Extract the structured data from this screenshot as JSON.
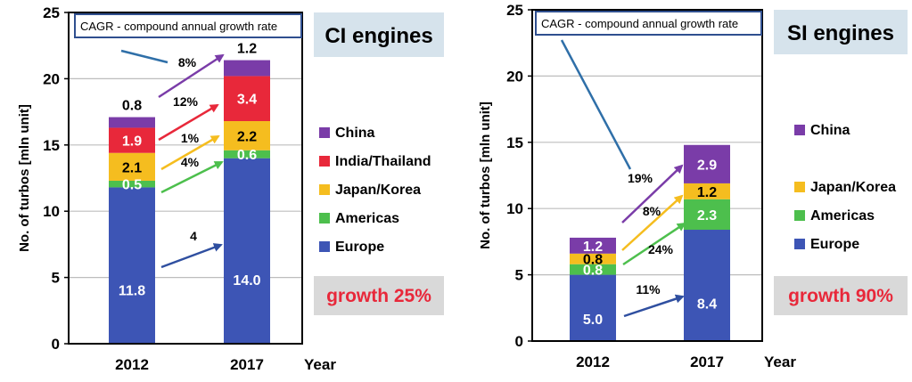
{
  "chart_data": [
    {
      "type": "bar",
      "stacked": true,
      "categories": [
        "2012",
        "2017"
      ],
      "x_axis_suffix": "Year",
      "ylabel": "No. of turbos  [mln unit]",
      "ylim": [
        0,
        25
      ],
      "yticks": [
        0,
        5,
        10,
        15,
        20,
        25
      ],
      "grid": true,
      "series": [
        {
          "name": "Europe",
          "values": [
            11.8,
            14.0
          ],
          "labels": [
            "11.8",
            "14.0"
          ],
          "color": "#3D55B5",
          "label_color": "#ffffff"
        },
        {
          "name": "Americas",
          "values": [
            0.5,
            0.6
          ],
          "labels": [
            "0.5",
            "0.6"
          ],
          "color": "#4DBF4D",
          "label_color": "#ffffff"
        },
        {
          "name": "Japan/Korea",
          "values": [
            2.1,
            2.2
          ],
          "labels": [
            "2.1",
            "2.2"
          ],
          "color": "#F5BD1F",
          "label_color": "#000000"
        },
        {
          "name": "India/Thailand",
          "values": [
            1.9,
            3.4
          ],
          "labels": [
            "1.9",
            "3.4"
          ],
          "color": "#E8283A",
          "label_color": "#ffffff"
        },
        {
          "name": "China",
          "values": [
            0.8,
            1.2
          ],
          "labels": [
            "0.8",
            "1.2"
          ],
          "color": "#7A3CA8",
          "label_color": "#000000"
        }
      ],
      "legend_order": [
        "China",
        "India/Thailand",
        "Japan/Korea",
        "Americas",
        "Europe"
      ],
      "cagr_arrows": [
        {
          "series": "China",
          "label": "8%",
          "color": "#7A3CA8"
        },
        {
          "series": "India/Thailand",
          "label": "12%",
          "color": "#E8283A"
        },
        {
          "series": "Japan/Korea",
          "label": "1%",
          "color": "#F5BD1F"
        },
        {
          "series": "Americas",
          "label": "4%",
          "color": "#4DBF4D"
        },
        {
          "series": "Europe",
          "label": "4",
          "color": "#2F4FA0"
        }
      ],
      "note_box": "CAGR - compound annual growth rate",
      "title": "CI engines",
      "growth": "growth 25%"
    },
    {
      "type": "bar",
      "stacked": true,
      "categories": [
        "2012",
        "2017"
      ],
      "x_axis_suffix": "Year",
      "ylabel": "No. of turbos  [mln unit]",
      "ylim": [
        0,
        25
      ],
      "yticks": [
        0,
        5,
        10,
        15,
        20,
        25
      ],
      "grid": true,
      "series": [
        {
          "name": "Europe",
          "values": [
            5.0,
            8.4
          ],
          "labels": [
            "5.0",
            "8.4"
          ],
          "color": "#3D55B5",
          "label_color": "#ffffff"
        },
        {
          "name": "Americas",
          "values": [
            0.8,
            2.3
          ],
          "labels": [
            "0.8",
            "2.3"
          ],
          "color": "#4DBF4D",
          "label_color": "#ffffff"
        },
        {
          "name": "Japan/Korea",
          "values": [
            0.8,
            1.2
          ],
          "labels": [
            "0.8",
            "1.2"
          ],
          "color": "#F5BD1F",
          "label_color": "#000000"
        },
        {
          "name": "China",
          "values": [
            1.2,
            2.9
          ],
          "labels": [
            "1.2",
            "2.9"
          ],
          "color": "#7A3CA8",
          "label_color": "#ffffff"
        }
      ],
      "legend_order": [
        "China",
        "Japan/Korea",
        "Americas",
        "Europe"
      ],
      "cagr_arrows": [
        {
          "series": "China",
          "label": "19%",
          "color": "#7A3CA8"
        },
        {
          "series": "Japan/Korea",
          "label": "8%",
          "color": "#F5BD1F"
        },
        {
          "series": "Americas",
          "label": "24%",
          "color": "#4DBF4D"
        },
        {
          "series": "Europe",
          "label": "11%",
          "color": "#2F4FA0"
        }
      ],
      "note_box": "CAGR - compound annual growth rate",
      "title": "SI engines",
      "growth": "growth 90%"
    }
  ]
}
